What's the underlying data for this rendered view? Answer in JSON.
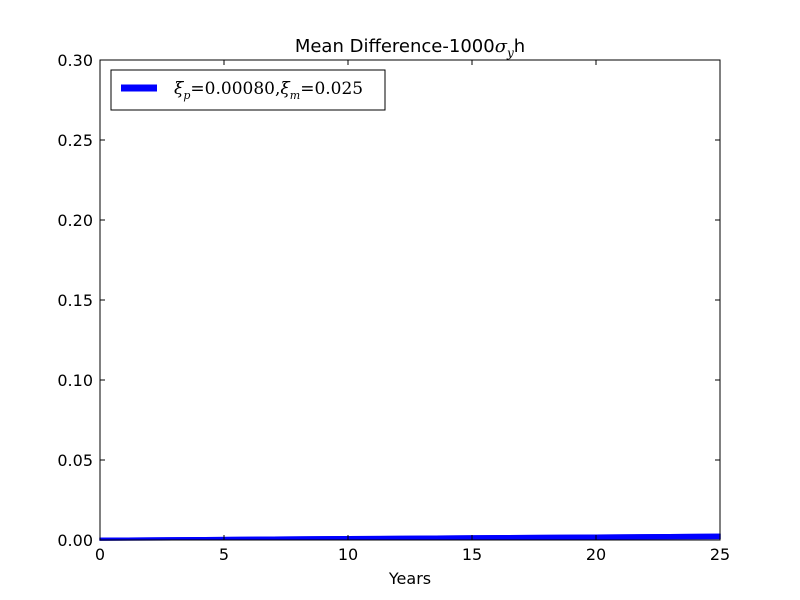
{
  "chart_data": {
    "type": "area",
    "title": {
      "prefix": "Mean Difference-1000",
      "sigma": "σ",
      "sub": "y",
      "suffix": "h"
    },
    "xlabel": "Years",
    "ylabel": "",
    "xlim": [
      0,
      25
    ],
    "ylim": [
      0,
      0.3
    ],
    "x_ticks": [
      0,
      5,
      10,
      15,
      20,
      25
    ],
    "x_tick_labels": [
      "0",
      "5",
      "10",
      "15",
      "20",
      "25"
    ],
    "y_ticks": [
      0,
      0.05,
      0.1,
      0.15,
      0.2,
      0.25,
      0.3
    ],
    "y_tick_labels": [
      "0.00",
      "0.05",
      "0.10",
      "0.15",
      "0.20",
      "0.25",
      "0.30"
    ],
    "grid": false,
    "legend_position": "top-left",
    "series": [
      {
        "legend": {
          "xi": "ξ",
          "p_sub": "p",
          "p_value": "0.00080",
          "m_sub": "m",
          "m_value": "0.025"
        },
        "color": "#0000ff",
        "x": [
          0,
          5,
          10,
          15,
          20,
          25
        ],
        "lower": [
          0,
          0.0002,
          0.0004,
          0.0006,
          0.0008,
          0.001
        ],
        "upper": [
          0.001,
          0.0015,
          0.002,
          0.0025,
          0.003,
          0.0035
        ]
      }
    ]
  }
}
